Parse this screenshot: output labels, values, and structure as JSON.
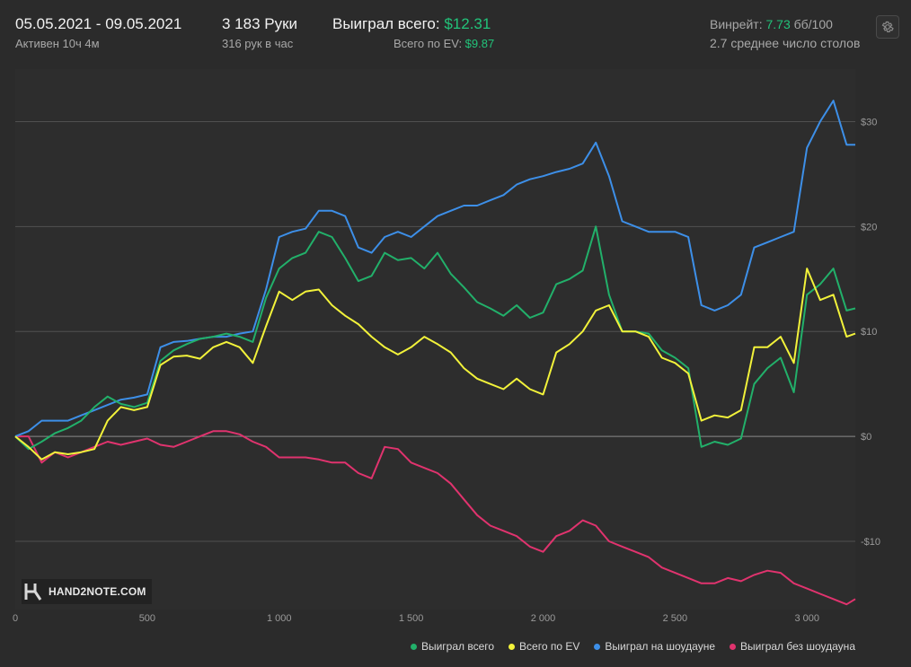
{
  "header": {
    "date_range": "05.05.2021 - 09.05.2021",
    "active_time": "Активен 10ч 4м",
    "hands_count": "3 183 Руки",
    "hands_per_hour": "316 рук в час",
    "total_won_label": "Выиграл всего: ",
    "total_won_value": "$12.31",
    "ev_label": "Всего по EV: ",
    "ev_value": "$9.87",
    "winrate_label": "Винрейт: ",
    "winrate_value": "7.73",
    "winrate_unit": " бб/100",
    "avg_tables": "2.7 среднее число столов"
  },
  "icons": {
    "settings": "gear-icon",
    "logo": "hand2note-logo-icon"
  },
  "watermark": {
    "text": "HAND2NOTE.COM"
  },
  "colors": {
    "background": "#2b2b2b",
    "won_total": "#22b06a",
    "ev_total": "#f2f23a",
    "showdown": "#3d8fe8",
    "non_showdown": "#e0336e",
    "accent_green": "#22c37a"
  },
  "chart_data": {
    "type": "line",
    "xlim": [
      0,
      3183
    ],
    "ylim": [
      -16.5,
      35
    ],
    "x_ticks": [
      0,
      500,
      1000,
      1500,
      2000,
      2500,
      3000
    ],
    "x_tick_labels": [
      "0",
      "500",
      "1 000",
      "1 500",
      "2 000",
      "2 500",
      "3 000"
    ],
    "y_ticks": [
      30,
      20,
      10,
      0,
      -10
    ],
    "y_tick_labels": [
      "$30",
      "$20",
      "$10",
      "$0",
      "-$10"
    ],
    "grid": "horizontal",
    "legend_position": "bottom-right",
    "x": [
      0,
      50,
      100,
      150,
      200,
      250,
      300,
      350,
      400,
      450,
      500,
      550,
      600,
      650,
      700,
      750,
      800,
      850,
      900,
      950,
      1000,
      1050,
      1100,
      1150,
      1200,
      1250,
      1300,
      1350,
      1400,
      1450,
      1500,
      1550,
      1600,
      1650,
      1700,
      1750,
      1800,
      1850,
      1900,
      1950,
      2000,
      2050,
      2100,
      2150,
      2200,
      2250,
      2300,
      2350,
      2400,
      2450,
      2500,
      2550,
      2600,
      2650,
      2700,
      2750,
      2800,
      2850,
      2900,
      2950,
      3000,
      3050,
      3100,
      3150,
      3183
    ],
    "series": [
      {
        "name": "Выиграл всего",
        "color": "#22b06a",
        "values": [
          0,
          -1.2,
          -0.5,
          0.3,
          0.8,
          1.5,
          2.8,
          3.8,
          3.1,
          2.8,
          3.2,
          7.2,
          8.2,
          8.8,
          9.3,
          9.5,
          9.8,
          9.5,
          9.0,
          13.2,
          16.0,
          17.0,
          17.5,
          19.5,
          19.0,
          17.0,
          14.8,
          15.3,
          17.5,
          16.8,
          17.0,
          16.0,
          17.5,
          15.5,
          14.2,
          12.8,
          12.2,
          11.5,
          12.5,
          11.3,
          11.8,
          14.5,
          15.0,
          15.8,
          20.0,
          13.5,
          10.0,
          10.0,
          9.8,
          8.2,
          7.5,
          6.5,
          -1.0,
          -0.5,
          -0.8,
          -0.2,
          5.0,
          6.5,
          7.5,
          4.2,
          13.5,
          14.5,
          16.0,
          12.0,
          12.2
        ]
      },
      {
        "name": "Всего по EV",
        "color": "#f2f23a",
        "values": [
          0,
          -1.0,
          -2.2,
          -1.5,
          -1.7,
          -1.5,
          -1.2,
          1.5,
          2.8,
          2.5,
          2.8,
          6.8,
          7.6,
          7.7,
          7.4,
          8.5,
          9.0,
          8.5,
          7.0,
          10.5,
          13.8,
          13.0,
          13.8,
          14.0,
          12.5,
          11.5,
          10.7,
          9.5,
          8.5,
          7.8,
          8.5,
          9.5,
          8.8,
          8.0,
          6.5,
          5.5,
          5.0,
          4.5,
          5.5,
          4.5,
          4.0,
          8.0,
          8.8,
          10.0,
          12.0,
          12.5,
          10.0,
          10.0,
          9.5,
          7.5,
          7.0,
          6.0,
          1.5,
          2.0,
          1.8,
          2.5,
          8.5,
          8.5,
          9.5,
          7.0,
          16.0,
          13.0,
          13.5,
          9.5,
          9.8
        ]
      },
      {
        "name": "Выиграл на шоудауне",
        "color": "#3d8fe8",
        "values": [
          0,
          0.5,
          1.5,
          1.5,
          1.5,
          2.0,
          2.5,
          3.0,
          3.5,
          3.7,
          4.0,
          8.5,
          9.0,
          9.1,
          9.3,
          9.5,
          9.5,
          9.8,
          10.0,
          14.0,
          19.0,
          19.5,
          19.8,
          21.5,
          21.5,
          21.0,
          18.0,
          17.5,
          19.0,
          19.5,
          19.0,
          20.0,
          21.0,
          21.5,
          22.0,
          22.0,
          22.5,
          23.0,
          24.0,
          24.5,
          24.8,
          25.2,
          25.5,
          26.0,
          28.0,
          24.8,
          20.5,
          20.0,
          19.5,
          19.5,
          19.5,
          19.0,
          12.5,
          12.0,
          12.5,
          13.5,
          18.0,
          18.5,
          19.0,
          19.5,
          27.5,
          30.0,
          32.0,
          27.8,
          27.8
        ]
      },
      {
        "name": "Выиграл без шоудауна",
        "color": "#e0336e",
        "values": [
          0,
          0,
          -2.5,
          -1.5,
          -2.0,
          -1.5,
          -1.0,
          -0.5,
          -0.8,
          -0.5,
          -0.2,
          -0.8,
          -1.0,
          -0.5,
          0,
          0.5,
          0.5,
          0.2,
          -0.5,
          -1.0,
          -2.0,
          -2.0,
          -2.0,
          -2.2,
          -2.5,
          -2.5,
          -3.5,
          -4.0,
          -1.0,
          -1.2,
          -2.5,
          -3.0,
          -3.5,
          -4.5,
          -6.0,
          -7.5,
          -8.5,
          -9.0,
          -9.5,
          -10.5,
          -11.0,
          -9.5,
          -9.0,
          -8.0,
          -8.5,
          -10.0,
          -10.5,
          -11.0,
          -11.5,
          -12.5,
          -13.0,
          -13.5,
          -14.0,
          -14.0,
          -13.5,
          -13.8,
          -13.2,
          -12.8,
          -13.0,
          -14.0,
          -14.5,
          -15.0,
          -15.5,
          -16.0,
          -15.5
        ]
      }
    ]
  }
}
